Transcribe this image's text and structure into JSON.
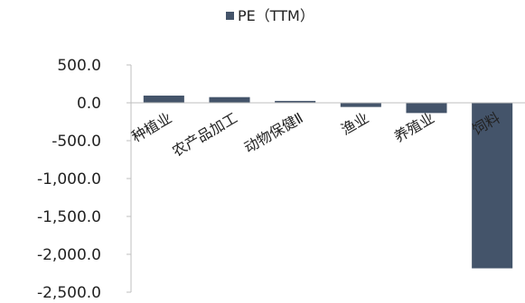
{
  "chart_data": {
    "type": "bar",
    "categories": [
      "种植业",
      "农产品加工",
      "动物保健Ⅱ",
      "渔业",
      "养殖业",
      "饲料"
    ],
    "series": [
      {
        "name": "PE（TTM）",
        "values": [
          95,
          75,
          25,
          -55,
          -135,
          -2185
        ]
      }
    ],
    "ylim": [
      -2500,
      500
    ],
    "yticks": [
      500,
      0,
      -500,
      -1000,
      -1500,
      -2000,
      -2500
    ],
    "ytick_labels": [
      "500.0",
      "0.0",
      "-500.0",
      "-1,000.0",
      "-1,500.0",
      "-2,000.0",
      "-2,500.0"
    ],
    "legend_position": "top",
    "grid": false,
    "colors": {
      "bar": "#44546a",
      "axis": "#bfbfbf",
      "text": "#222222"
    }
  }
}
